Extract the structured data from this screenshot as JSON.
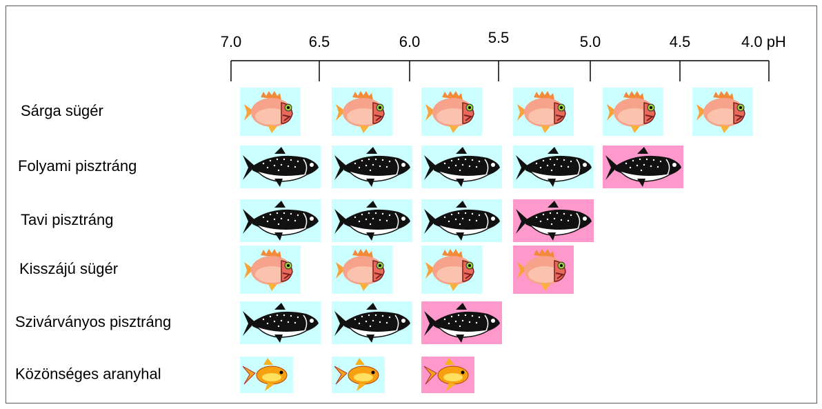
{
  "scale": {
    "ticks": [
      "7.0",
      "6.5",
      "6.0",
      "5.5",
      "5.0",
      "4.5",
      "4.0 pH"
    ]
  },
  "rows": [
    {
      "label": "Sárga sügér",
      "icon": "perch",
      "tiles": [
        "#ccffff",
        "#ccffff",
        "#ccffff",
        "#ccffff",
        "#ccffff",
        "#ccffff"
      ]
    },
    {
      "label": "Folyami pisztráng",
      "icon": "trout",
      "tiles": [
        "#ccffff",
        "#ccffff",
        "#ccffff",
        "#ccffff",
        "#ff99cc"
      ]
    },
    {
      "label": "Tavi pisztráng",
      "icon": "trout",
      "tiles": [
        "#ccffff",
        "#ccffff",
        "#ccffff",
        "#ff99cc"
      ]
    },
    {
      "label": "Kisszájú sügér",
      "icon": "perch",
      "tiles": [
        "#ccffff",
        "#ccffff",
        "#ccffff",
        "#ff99cc"
      ]
    },
    {
      "label": "Szivárványos pisztráng",
      "icon": "trout",
      "tiles": [
        "#ccffff",
        "#ccffff",
        "#ff99cc"
      ]
    },
    {
      "label": "Közönséges aranyhal",
      "icon": "goldfish",
      "tiles": [
        "#ccffff",
        "#ccffff",
        "#ff99cc"
      ]
    }
  ]
}
